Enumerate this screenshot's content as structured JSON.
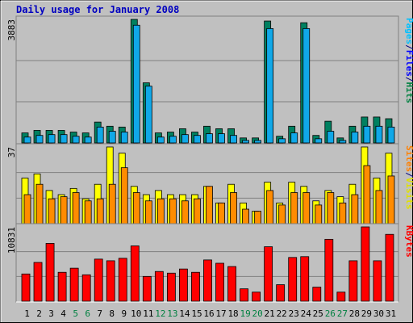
{
  "chart_data": {
    "type": "bar",
    "title": "Daily usage for January 2008",
    "categories": [
      "1",
      "2",
      "3",
      "4",
      "5",
      "6",
      "7",
      "8",
      "9",
      "10",
      "11",
      "12",
      "13",
      "14",
      "15",
      "16",
      "17",
      "18",
      "19",
      "20",
      "21",
      "22",
      "23",
      "24",
      "25",
      "26",
      "27",
      "28",
      "29",
      "30",
      "31"
    ],
    "category_colors": [
      "#000000",
      "#000000",
      "#000000",
      "#000000",
      "#008040",
      "#008040",
      "#000000",
      "#000000",
      "#000000",
      "#000000",
      "#000000",
      "#008040",
      "#008040",
      "#000000",
      "#000000",
      "#000000",
      "#000000",
      "#000000",
      "#008040",
      "#008040",
      "#000000",
      "#000000",
      "#000000",
      "#000000",
      "#000000",
      "#008040",
      "#008040",
      "#000000",
      "#000000",
      "#000000",
      "#000000"
    ],
    "panels": [
      {
        "ylim": [
          0,
          3883
        ],
        "yticks": [
          3883
        ],
        "legend": [
          "Pages",
          "/",
          "Files",
          "/",
          "Hits"
        ],
        "legend_colors": [
          "#00c0ff",
          "#000080",
          "#0000ff",
          "#000080",
          "#008040"
        ],
        "series": [
          {
            "color": "#008060",
            "values": [
              315,
              394,
              394,
              394,
              341,
              315,
              656,
              525,
              499,
              3883,
              1889,
              315,
              341,
              446,
              341,
              525,
              446,
              446,
              157,
              157,
              3831,
              210,
              525,
              3778,
              236,
              682,
              157,
              525,
              814,
              814,
              761
            ]
          },
          {
            "color": "#10a8e8",
            "values": [
              184,
              236,
              262,
              262,
              210,
              184,
              499,
              367,
              341,
              3699,
              1784,
              184,
              210,
              262,
              236,
              289,
              289,
              236,
              79,
              79,
              3594,
              131,
              315,
              3594,
              131,
              367,
              79,
              341,
              525,
              525,
              499
            ]
          }
        ]
      },
      {
        "ylim": [
          0,
          37
        ],
        "yticks": [
          37
        ],
        "legend": [
          "Sites",
          "/",
          "Visits"
        ],
        "legend_colors": [
          "#ff8000",
          "#000080",
          "#e0e000"
        ],
        "series": [
          {
            "color": "#ffff00",
            "values": [
              22,
              24,
              16,
              14,
              17,
              12,
              19,
              37,
              34,
              18,
              14,
              16,
              14,
              14,
              14,
              18,
              10,
              19,
              10,
              6,
              20,
              10,
              20,
              18,
              11,
              16,
              13,
              19,
              37,
              22,
              34
            ]
          },
          {
            "color": "#ff8c00",
            "values": [
              14,
              19,
              12,
              13,
              15,
              11,
              12,
              19,
              27,
              15,
              11,
              12,
              12,
              11,
              12,
              18,
              10,
              15,
              7,
              6,
              16,
              9,
              15,
              15,
              9,
              15,
              10,
              14,
              28,
              16,
              23
            ]
          }
        ]
      },
      {
        "ylim": [
          0,
          10831
        ],
        "yticks": [
          10831
        ],
        "legend": [
          "KBytes"
        ],
        "legend_colors": [
          "#ff0000"
        ],
        "series": [
          {
            "color": "#ff0000",
            "values": [
              3970,
              5654,
              8422,
              4211,
              4812,
              3850,
              6136,
              5895,
              6256,
              8060,
              3609,
              4331,
              4090,
              4692,
              4211,
              6015,
              5534,
              5053,
              1805,
              1323,
              7940,
              2406,
              6376,
              6497,
              2045,
              9023,
              1323,
              5895,
              10831,
              5895,
              9745
            ]
          }
        ]
      }
    ]
  }
}
